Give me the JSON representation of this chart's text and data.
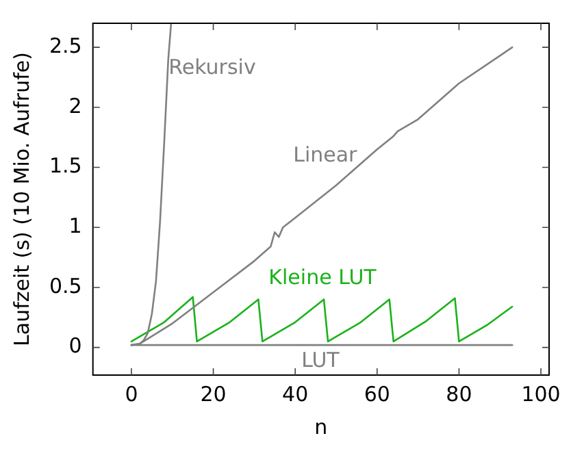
{
  "chart_data": {
    "type": "line",
    "xlabel": "n",
    "ylabel": "Laufzeit (s) (10 Mio. Aufrufe)",
    "xlim": [
      -9.4,
      102
    ],
    "ylim": [
      -0.23,
      2.7
    ],
    "xticks": [
      0,
      20,
      40,
      60,
      80,
      100
    ],
    "yticks": [
      0,
      0.5,
      1,
      1.5,
      2,
      2.5
    ],
    "grid": false,
    "legend": false,
    "marker": "none",
    "line_style": "solid",
    "series": [
      {
        "name": "Rekursiv",
        "color": "#808080",
        "x": [
          0,
          2,
          3,
          4,
          5,
          6,
          7,
          8,
          9,
          9.7
        ],
        "values": [
          0.02,
          0.03,
          0.06,
          0.12,
          0.28,
          0.55,
          1.05,
          1.7,
          2.4,
          2.7
        ]
      },
      {
        "name": "Linear",
        "color": "#808080",
        "x": [
          0,
          2,
          10,
          20,
          30,
          34,
          35,
          36,
          37,
          40,
          50,
          60,
          64,
          65,
          70,
          80,
          90,
          93
        ],
        "values": [
          0.02,
          0.03,
          0.2,
          0.46,
          0.72,
          0.84,
          0.96,
          0.92,
          1.0,
          1.08,
          1.35,
          1.65,
          1.76,
          1.8,
          1.9,
          2.2,
          2.43,
          2.5
        ]
      },
      {
        "name": "Kleine LUT",
        "color": "#1ab21a",
        "x": [
          0,
          8,
          15,
          16,
          24,
          31,
          32,
          40,
          47,
          48,
          56,
          63,
          64,
          72,
          79,
          80,
          87,
          93
        ],
        "values": [
          0.05,
          0.21,
          0.42,
          0.05,
          0.21,
          0.4,
          0.05,
          0.21,
          0.4,
          0.05,
          0.21,
          0.4,
          0.05,
          0.22,
          0.41,
          0.05,
          0.19,
          0.34
        ]
      },
      {
        "name": "LUT",
        "color": "#808080",
        "x": [
          0,
          93
        ],
        "values": [
          0.02,
          0.02
        ]
      }
    ]
  }
}
